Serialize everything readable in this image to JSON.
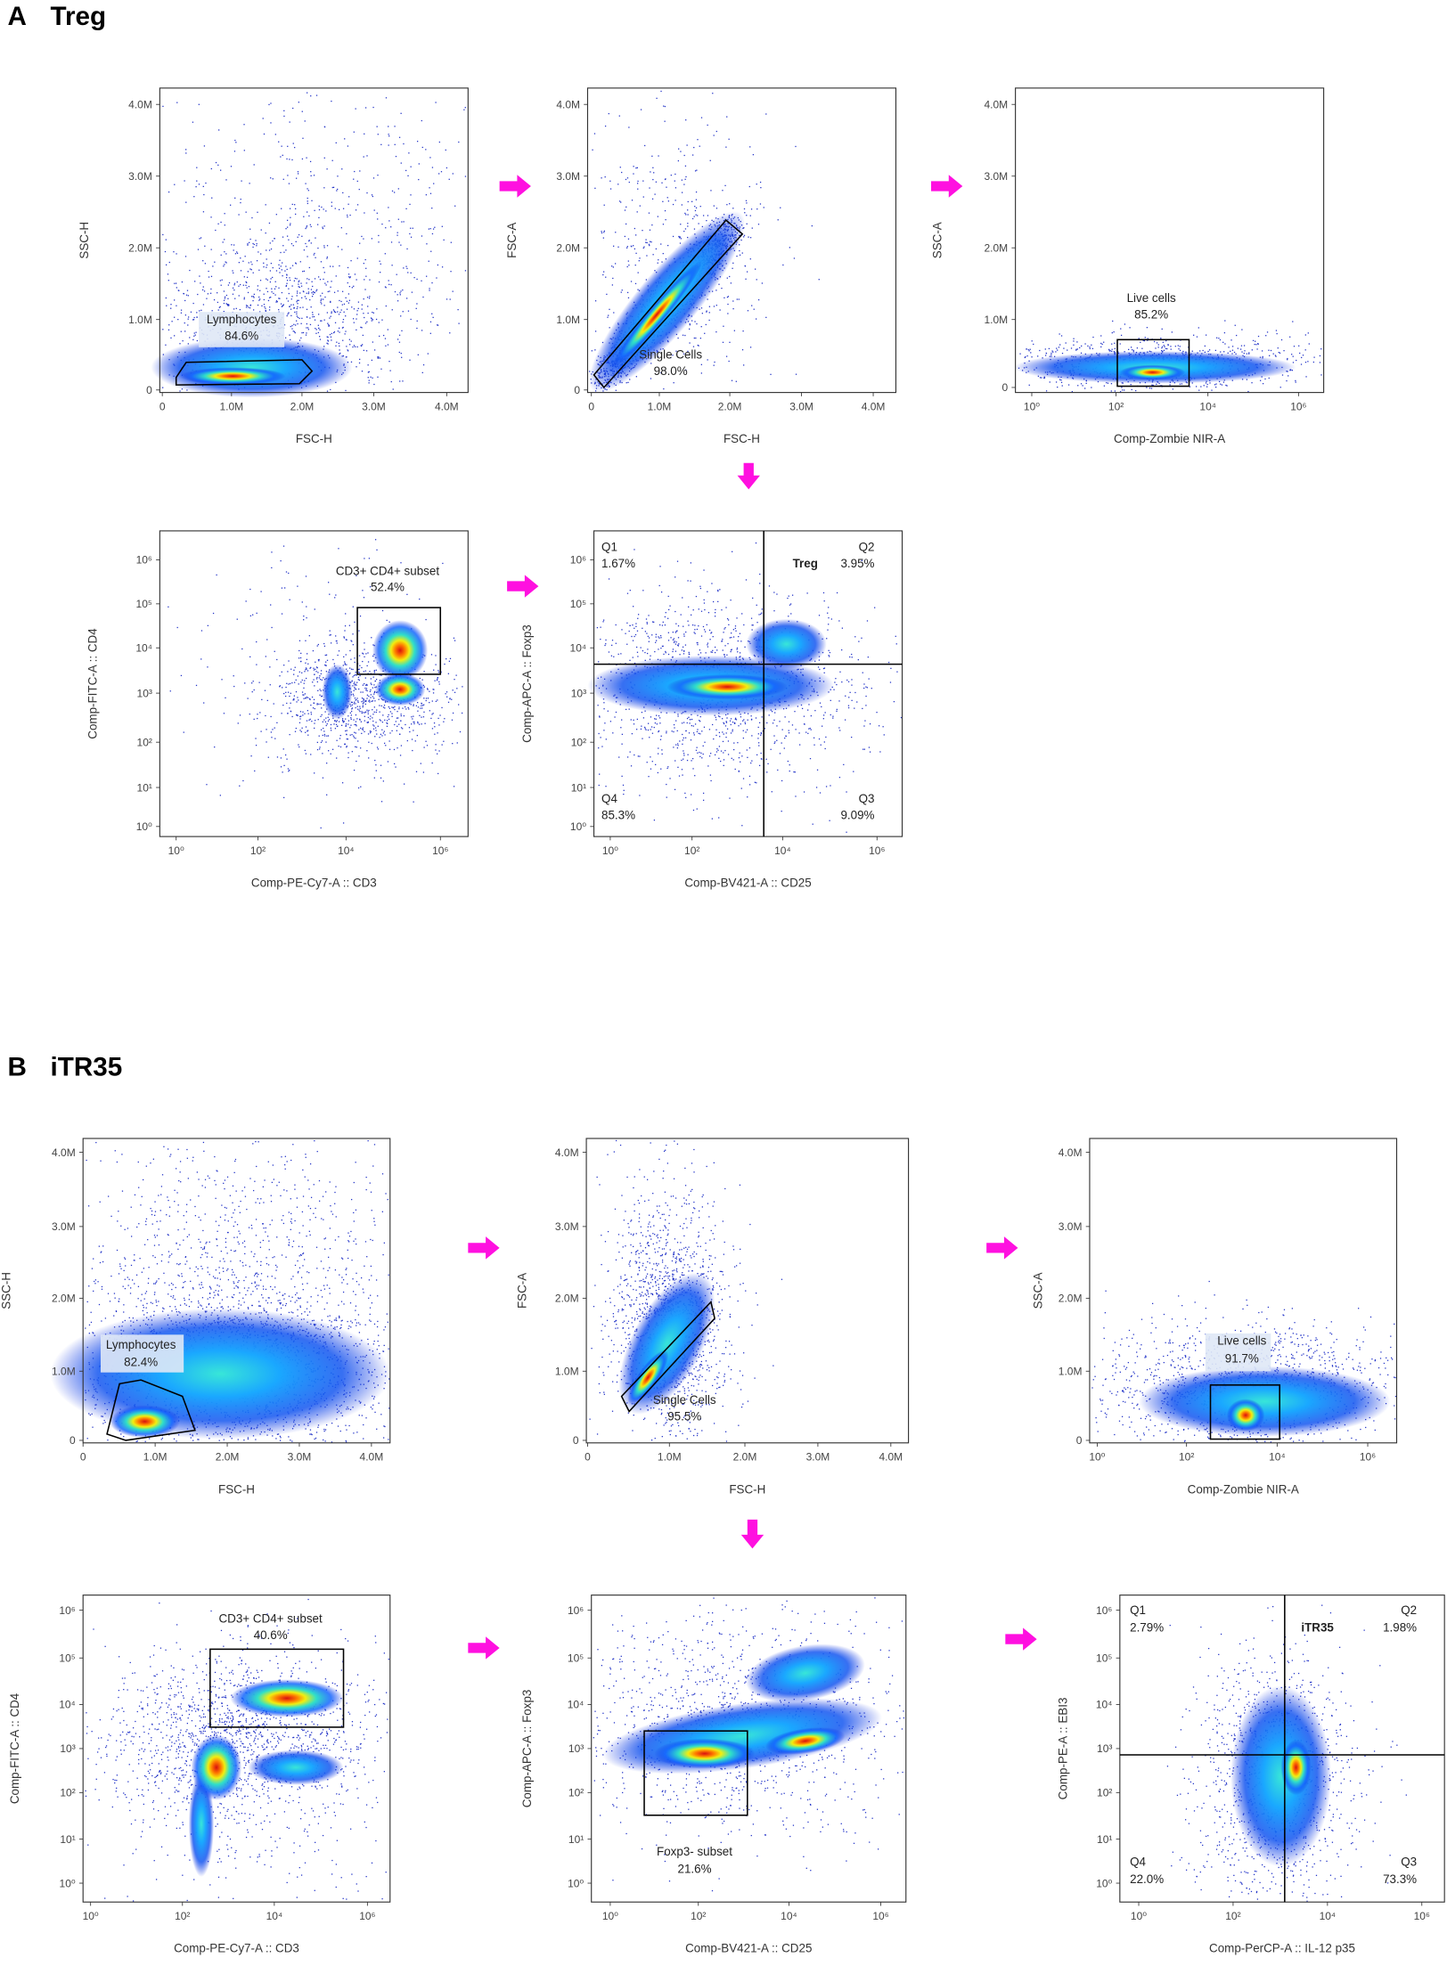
{
  "panels": [
    {
      "letter": "A",
      "title": "Treg",
      "plots": [
        {
          "x_label": "FSC-H",
          "y_label": "SSC-H",
          "x_ticks": [
            "0",
            "1.0M",
            "2.0M",
            "3.0M",
            "4.0M"
          ],
          "y_ticks": [
            "0",
            "1.0M",
            "2.0M",
            "3.0M",
            "4.0M"
          ],
          "gates": [
            {
              "name": "Lymphocytes",
              "percent": "84.6%"
            }
          ]
        },
        {
          "x_label": "FSC-H",
          "y_label": "FSC-A",
          "x_ticks": [
            "0",
            "1.0M",
            "2.0M",
            "3.0M",
            "4.0M"
          ],
          "y_ticks": [
            "0",
            "1.0M",
            "2.0M",
            "3.0M",
            "4.0M"
          ],
          "gates": [
            {
              "name": "Single Cells",
              "percent": "98.0%"
            }
          ]
        },
        {
          "x_label": "Comp-Zombie NIR-A",
          "y_label": "SSC-A",
          "x_ticks": [
            "10⁰",
            "10²",
            "10⁴",
            "10⁶"
          ],
          "y_ticks": [
            "0",
            "1.0M",
            "2.0M",
            "3.0M",
            "4.0M"
          ],
          "gates": [
            {
              "name": "Live cells",
              "percent": "85.2%"
            }
          ]
        },
        {
          "x_label": "Comp-PE-Cy7-A :: CD3",
          "y_label": "Comp-FITC-A :: CD4",
          "x_ticks": [
            "10⁰",
            "10²",
            "10⁴",
            "10⁶"
          ],
          "y_ticks": [
            "10⁰",
            "10¹",
            "10²",
            "10³",
            "10⁴",
            "10⁵",
            "10⁶"
          ],
          "gates": [
            {
              "name": "CD3+ CD4+ subset",
              "percent": "52.4%"
            }
          ]
        },
        {
          "x_label": "Comp-BV421-A :: CD25",
          "y_label": "Comp-APC-A :: Foxp3",
          "x_ticks": [
            "10⁰",
            "10²",
            "10⁴",
            "10⁶"
          ],
          "y_ticks": [
            "10⁰",
            "10¹",
            "10²",
            "10³",
            "10⁴",
            "10⁵",
            "10⁶"
          ],
          "gates": [
            {
              "name": "Q1",
              "percent": "1.67%"
            },
            {
              "name": "Q2",
              "population": "Treg",
              "percent": "3.95%"
            },
            {
              "name": "Q4",
              "percent": "85.3%"
            },
            {
              "name": "Q3",
              "percent": "9.09%"
            }
          ]
        }
      ]
    },
    {
      "letter": "B",
      "title": "iTR35",
      "plots": [
        {
          "x_label": "FSC-H",
          "y_label": "SSC-H",
          "x_ticks": [
            "0",
            "1.0M",
            "2.0M",
            "3.0M",
            "4.0M"
          ],
          "y_ticks": [
            "0",
            "1.0M",
            "2.0M",
            "3.0M",
            "4.0M"
          ],
          "gates": [
            {
              "name": "Lymphocytes",
              "percent": "82.4%"
            }
          ]
        },
        {
          "x_label": "FSC-H",
          "y_label": "FSC-A",
          "x_ticks": [
            "0",
            "1.0M",
            "2.0M",
            "3.0M",
            "4.0M"
          ],
          "y_ticks": [
            "0",
            "1.0M",
            "2.0M",
            "3.0M",
            "4.0M"
          ],
          "gates": [
            {
              "name": "Single Cells",
              "percent": "95.5%"
            }
          ]
        },
        {
          "x_label": "Comp-Zombie NIR-A",
          "y_label": "SSC-A",
          "x_ticks": [
            "10⁰",
            "10²",
            "10⁴",
            "10⁶"
          ],
          "y_ticks": [
            "0",
            "1.0M",
            "2.0M",
            "3.0M",
            "4.0M"
          ],
          "gates": [
            {
              "name": "Live cells",
              "percent": "91.7%"
            }
          ]
        },
        {
          "x_label": "Comp-PE-Cy7-A :: CD3",
          "y_label": "Comp-FITC-A :: CD4",
          "x_ticks": [
            "10⁰",
            "10²",
            "10⁴",
            "10⁶"
          ],
          "y_ticks": [
            "10⁰",
            "10¹",
            "10²",
            "10³",
            "10⁴",
            "10⁵",
            "10⁶"
          ],
          "gates": [
            {
              "name": "CD3+ CD4+ subset",
              "percent": "40.6%"
            }
          ]
        },
        {
          "x_label": "Comp-BV421-A :: CD25",
          "y_label": "Comp-APC-A :: Foxp3",
          "x_ticks": [
            "10⁰",
            "10²",
            "10⁴",
            "10⁶"
          ],
          "y_ticks": [
            "10⁰",
            "10¹",
            "10²",
            "10³",
            "10⁴",
            "10⁵",
            "10⁶"
          ],
          "gates": [
            {
              "name": "Foxp3- subset",
              "percent": "21.6%"
            }
          ]
        },
        {
          "x_label": "Comp-PerCP-A :: IL-12 p35",
          "y_label": "Comp-PE-A :: EBI3",
          "x_ticks": [
            "10⁰",
            "10²",
            "10⁴",
            "10⁶"
          ],
          "y_ticks": [
            "10⁰",
            "10¹",
            "10²",
            "10³",
            "10⁴",
            "10⁵",
            "10⁶"
          ],
          "gates": [
            {
              "name": "Q1",
              "percent": "2.79%"
            },
            {
              "name": "Q2",
              "population": "iTR35",
              "percent": "1.98%"
            },
            {
              "name": "Q4",
              "percent": "22.0%"
            },
            {
              "name": "Q3",
              "percent": "73.3%"
            }
          ]
        }
      ]
    }
  ]
}
